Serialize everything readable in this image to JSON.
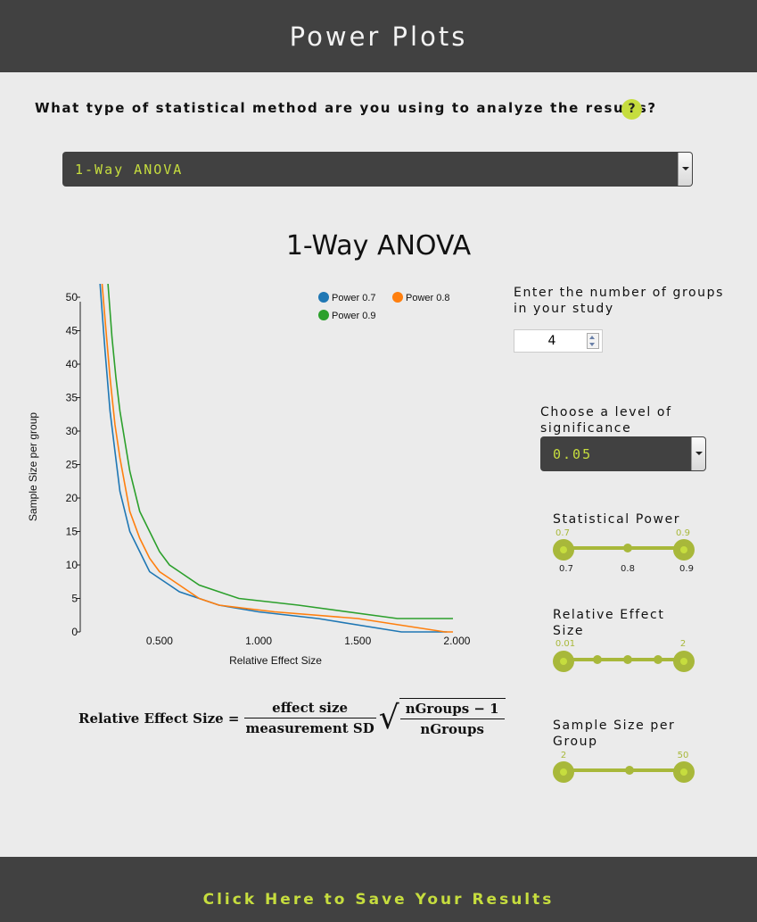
{
  "header": {
    "title": "Power Plots"
  },
  "question": {
    "text": "What type of statistical method are you using to analyze the results?",
    "help_label": "?"
  },
  "method_select": {
    "value": "1-Way ANOVA"
  },
  "section_title": "1-Way ANOVA",
  "controls": {
    "groups_label_line1": "Enter the number of groups",
    "groups_label_line2": "in your study",
    "groups_value": "4",
    "sig_label_line1": "Choose a level of",
    "sig_label_line2": "significance",
    "sig_value": "0.05",
    "power_label": "Statistical Power",
    "power_min": "0.7",
    "power_max": "0.9",
    "power_axis": [
      "0.7",
      "0.8",
      "0.9"
    ],
    "effect_label_line1": "Relative Effect",
    "effect_label_line2": "Size",
    "effect_min": "0.01",
    "effect_max": "2",
    "sample_label_line1": "Sample Size per",
    "sample_label_line2": "Group",
    "sample_min": "2",
    "sample_max": "50"
  },
  "formula": {
    "lhs": "Relative Effect Size",
    "numerator": "effect size",
    "denominator": "measurement SD",
    "root_numerator": "nGroups − 1",
    "root_denominator": "nGroups"
  },
  "footer": {
    "save_label": "Click Here to Save Your Results"
  },
  "chart_data": {
    "type": "line",
    "xlabel": "Relative Effect Size",
    "ylabel": "Sample Size per group",
    "xlim": [
      0.1,
      2.07
    ],
    "ylim": [
      0,
      52
    ],
    "x_ticks": [
      "0.500",
      "1.000",
      "1.500",
      "2.000"
    ],
    "y_ticks": [
      "0",
      "5",
      "10",
      "15",
      "20",
      "25",
      "30",
      "35",
      "40",
      "45",
      "50"
    ],
    "legend_position": "top-right",
    "series": [
      {
        "name": "Power 0.7",
        "color": "#1f77b4",
        "x": [
          0.2,
          0.225,
          0.25,
          0.275,
          0.3,
          0.35,
          0.4,
          0.45,
          0.5,
          0.55,
          0.6,
          0.7,
          0.8,
          1.0,
          1.3,
          1.72,
          1.95
        ],
        "y": [
          52,
          42,
          33,
          27,
          21,
          15,
          12,
          9,
          8,
          7,
          6,
          5,
          4,
          3,
          2,
          0,
          0
        ]
      },
      {
        "name": "Power 0.8",
        "color": "#ff7f0e",
        "x": [
          0.21,
          0.23,
          0.25,
          0.275,
          0.3,
          0.35,
          0.4,
          0.45,
          0.5,
          0.55,
          0.6,
          0.7,
          0.8,
          1.08,
          1.5,
          1.94,
          1.98
        ],
        "y": [
          52,
          45,
          38,
          31,
          26,
          18,
          14,
          11,
          9,
          8,
          7,
          5,
          4,
          3,
          2,
          0,
          0
        ]
      },
      {
        "name": "Power 0.9",
        "color": "#2ca02c",
        "x": [
          0.24,
          0.26,
          0.28,
          0.3,
          0.35,
          0.4,
          0.45,
          0.5,
          0.55,
          0.6,
          0.7,
          0.8,
          0.9,
          1.2,
          1.7,
          1.98
        ],
        "y": [
          52,
          44,
          38,
          33,
          24,
          18,
          15,
          12,
          10,
          9,
          7,
          6,
          5,
          4,
          2,
          2
        ]
      }
    ]
  }
}
